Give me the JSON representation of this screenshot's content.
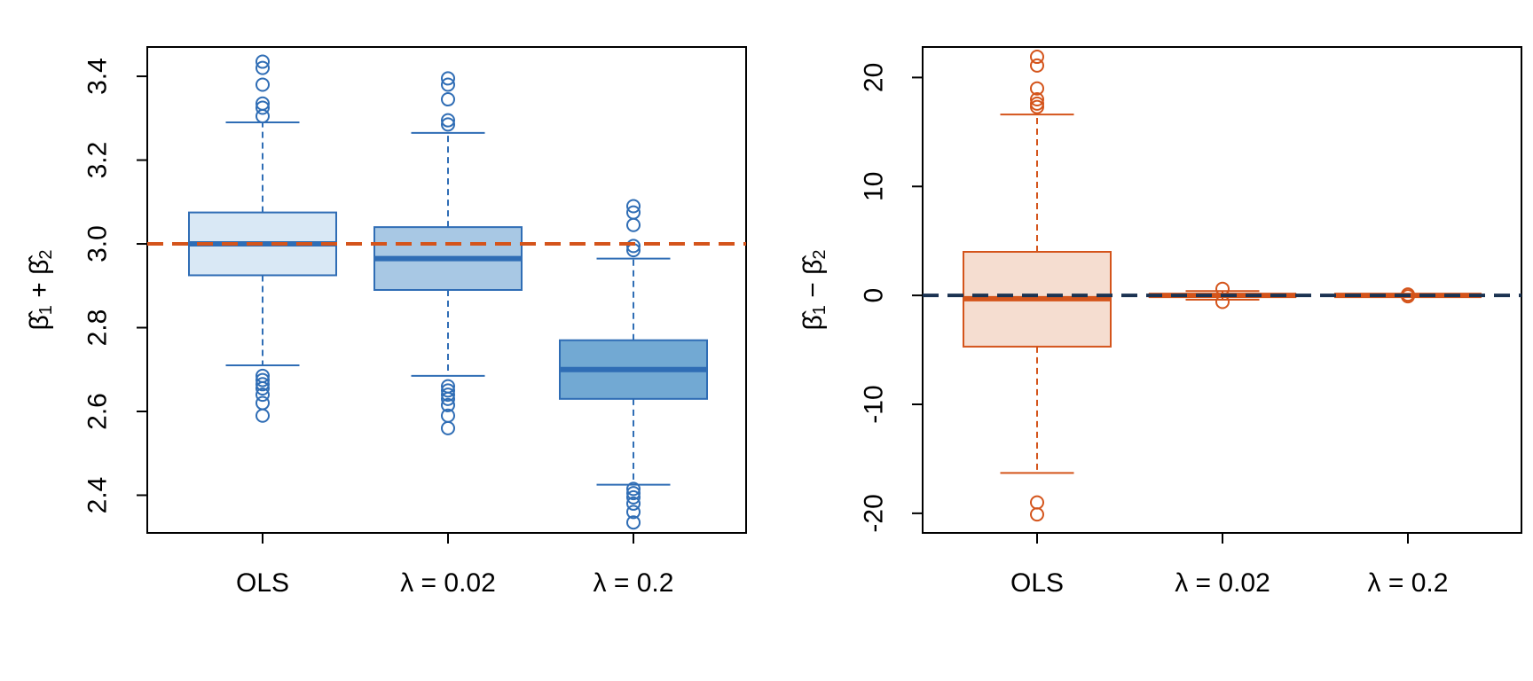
{
  "chart_data": [
    {
      "type": "boxplot",
      "panel": "left",
      "ylabel": "β̂₁ + β̂₂",
      "ylabel_parts": [
        "β̂",
        "1",
        " + ",
        "β̂",
        "2"
      ],
      "categories": [
        "OLS",
        "λ = 0.02",
        "λ = 0.2"
      ],
      "yticks": [
        "2.4",
        "2.6",
        "2.8",
        "3.0",
        "3.2",
        "3.4"
      ],
      "ylim": [
        2.31,
        3.47
      ],
      "reference_line": {
        "y": 3.0,
        "color": "#d4541b",
        "style": "dashed"
      },
      "boxes": [
        {
          "name": "OLS",
          "q1": 2.925,
          "median": 3.0,
          "q3": 3.075,
          "whisker_low": 2.71,
          "whisker_high": 3.29,
          "outliers": [
            2.59,
            2.62,
            2.64,
            2.655,
            2.665,
            2.675,
            2.685,
            3.305,
            3.325,
            3.335,
            3.38,
            3.42,
            3.435
          ],
          "fill": "#d9e8f5",
          "stroke": "#2f6db5"
        },
        {
          "name": "λ = 0.02",
          "q1": 2.89,
          "median": 2.965,
          "q3": 3.04,
          "whisker_low": 2.685,
          "whisker_high": 3.265,
          "outliers": [
            2.56,
            2.59,
            2.615,
            2.63,
            2.64,
            2.65,
            2.66,
            3.285,
            3.295,
            3.345,
            3.38,
            3.395
          ],
          "fill": "#a8c8e4",
          "stroke": "#2f6db5"
        },
        {
          "name": "λ = 0.2",
          "q1": 2.63,
          "median": 2.7,
          "q3": 2.77,
          "whisker_low": 2.425,
          "whisker_high": 2.965,
          "outliers": [
            2.335,
            2.36,
            2.38,
            2.395,
            2.405,
            2.415,
            2.985,
            2.995,
            3.045,
            3.075,
            3.09
          ],
          "fill": "#72a9d3",
          "stroke": "#2f6db5"
        }
      ]
    },
    {
      "type": "boxplot",
      "panel": "right",
      "ylabel": "β̂₁ − β̂₂",
      "ylabel_parts": [
        "β̂",
        "1",
        " − ",
        "β̂",
        "2"
      ],
      "categories": [
        "OLS",
        "λ = 0.02",
        "λ = 0.2"
      ],
      "yticks": [
        "-20",
        "-10",
        "0",
        "10",
        "20"
      ],
      "yticks_values": [
        -20,
        -10,
        0,
        10,
        20
      ],
      "ylim": [
        -21.8,
        22.8
      ],
      "reference_line": {
        "y": 0,
        "color": "#1b3352",
        "style": "dashed"
      },
      "boxes": [
        {
          "name": "OLS",
          "q1": -4.7,
          "median": -0.3,
          "q3": 4.0,
          "whisker_low": -16.3,
          "whisker_high": 16.6,
          "outliers": [
            -20.1,
            -19.0,
            17.3,
            17.6,
            18.0,
            19.0,
            21.1,
            21.9
          ],
          "fill": "#f5ddd0",
          "stroke": "#d4541b"
        },
        {
          "name": "λ = 0.02",
          "q1": -0.1,
          "median": 0.0,
          "q3": 0.1,
          "whisker_low": -0.4,
          "whisker_high": 0.4,
          "outliers": [
            -0.6,
            0.6
          ],
          "fill": "#f5ddd0",
          "stroke": "#d4541b"
        },
        {
          "name": "λ = 0.2",
          "q1": -0.02,
          "median": 0.0,
          "q3": 0.02,
          "whisker_low": -0.05,
          "whisker_high": 0.05,
          "outliers": [
            -0.08,
            0.08
          ],
          "fill": "#f5ddd0",
          "stroke": "#d4541b"
        }
      ]
    }
  ]
}
